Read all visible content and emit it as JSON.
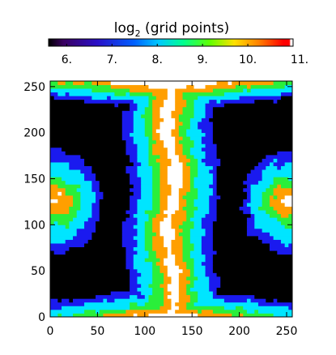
{
  "chart_data": [
    {
      "type": "colorbar",
      "title_base": "log",
      "title_sub": "2",
      "title_rest": " (grid points)",
      "range": [
        5.6,
        11.0
      ],
      "ticks": [
        "6.",
        "7.",
        "8.",
        "9.",
        "10.",
        "11."
      ],
      "tick_values": [
        6,
        7,
        8,
        9,
        10,
        11
      ],
      "colormap": "rainbow"
    },
    {
      "type": "heatmap",
      "title": "",
      "xlabel": "",
      "ylabel": "",
      "xlim": [
        0,
        256
      ],
      "ylim": [
        0,
        256
      ],
      "xticks": [
        "0",
        "50",
        "100",
        "150",
        "200",
        "250"
      ],
      "yticks": [
        "0",
        "50",
        "100",
        "150",
        "200",
        "250"
      ],
      "xtick_values": [
        0,
        50,
        100,
        150,
        200,
        250
      ],
      "ytick_values": [
        0,
        50,
        100,
        150,
        200,
        250
      ],
      "grid": false,
      "levels": [
        {
          "value": 6,
          "color": "#000000"
        },
        {
          "value": 7,
          "color": "#1a1aef"
        },
        {
          "value": 8,
          "color": "#00e5ff"
        },
        {
          "value": 9,
          "color": "#2aef3a"
        },
        {
          "value": 10,
          "color": "#ff9f00"
        },
        {
          "value": 11,
          "color": "#ffffff"
        }
      ]
    }
  ]
}
